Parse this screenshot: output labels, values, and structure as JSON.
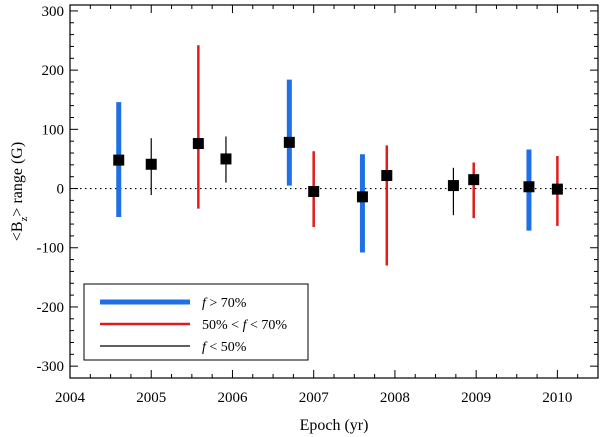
{
  "chart_data": {
    "type": "scatter",
    "title": "",
    "xlabel": "Epoch (yr)",
    "ylabel_parts": [
      "<B",
      "z",
      "> range (G)"
    ],
    "xlim": [
      2004,
      2010.5
    ],
    "ylim": [
      -320,
      310
    ],
    "x_ticks": [
      2004,
      2005,
      2006,
      2007,
      2008,
      2009,
      2010
    ],
    "y_ticks": [
      -300,
      -200,
      -100,
      0,
      100,
      200,
      300
    ],
    "zero_line": "dotted",
    "series": [
      {
        "name": "f > 70%",
        "legend_parts": [
          "f",
          " > 70%"
        ],
        "color": "#1f6fe6",
        "style": "thick",
        "points": [
          {
            "x": 2004.6,
            "y": 48,
            "low": -48,
            "high": 146
          },
          {
            "x": 2006.7,
            "y": 78,
            "low": 5,
            "high": 184
          },
          {
            "x": 2007.6,
            "y": -14,
            "low": -108,
            "high": 58
          },
          {
            "x": 2009.65,
            "y": 3,
            "low": -71,
            "high": 66
          }
        ]
      },
      {
        "name": "50% < f < 70%",
        "legend_parts": [
          "50% < ",
          "f",
          " < 70%"
        ],
        "color": "#e01b1b",
        "style": "medium",
        "points": [
          {
            "x": 2005.58,
            "y": 76,
            "low": -34,
            "high": 242
          },
          {
            "x": 2007.0,
            "y": -5,
            "low": -65,
            "high": 63
          },
          {
            "x": 2007.9,
            "y": 22,
            "low": -130,
            "high": 73
          },
          {
            "x": 2008.97,
            "y": 15,
            "low": -50,
            "high": 44
          },
          {
            "x": 2010.0,
            "y": -1,
            "low": -63,
            "high": 55
          }
        ]
      },
      {
        "name": "f < 50%",
        "legend_parts": [
          "f",
          " < 50%"
        ],
        "color": "#000000",
        "style": "thin",
        "points": [
          {
            "x": 2005.0,
            "y": 41,
            "low": -11,
            "high": 85
          },
          {
            "x": 2005.92,
            "y": 50,
            "low": 10,
            "high": 88
          },
          {
            "x": 2008.72,
            "y": 5,
            "low": -45,
            "high": 35
          }
        ]
      }
    ],
    "legend_position": "bottom-left"
  }
}
